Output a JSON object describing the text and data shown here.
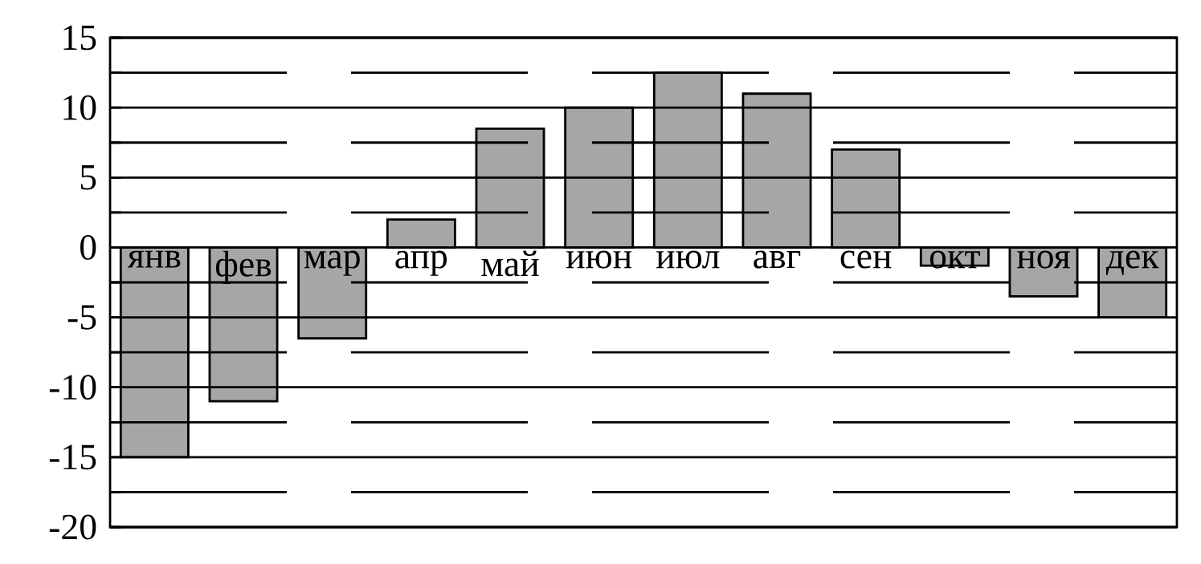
{
  "chart_data": {
    "type": "bar",
    "categories": [
      "янв",
      "фев",
      "мар",
      "апр",
      "май",
      "июн",
      "июл",
      "авг",
      "сен",
      "окт",
      "ноя",
      "дек"
    ],
    "values": [
      -15,
      -11,
      -6.5,
      2,
      8.5,
      10,
      12.5,
      11,
      7,
      -1.3,
      -3.5,
      -5
    ],
    "color": "#a6a6a6",
    "ylim": [
      -20,
      15
    ],
    "yticks": [
      -20,
      {
        "value": -17.5,
        "label": null
      },
      -15,
      {
        "value": -12.5,
        "label": null
      },
      -10,
      {
        "value": -7.5,
        "label": null
      },
      -5,
      {
        "value": -2.5,
        "label": null
      },
      0,
      {
        "value": 2.5,
        "label": null
      },
      5,
      {
        "value": 7.5,
        "label": null
      },
      10,
      {
        "value": 12.5,
        "label": null
      },
      15
    ],
    "grid": "y"
  }
}
